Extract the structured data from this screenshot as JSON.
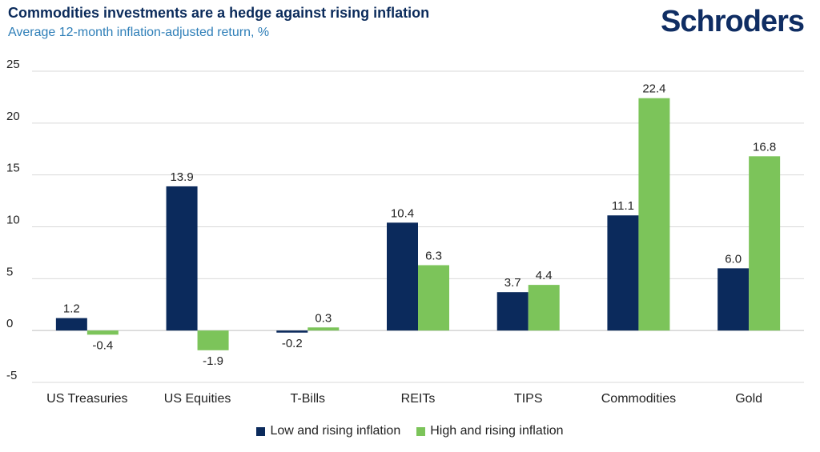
{
  "header": {
    "title": "Commodities investments are a hedge against rising inflation",
    "subtitle": "Average 12-month inflation-adjusted return, %",
    "logo": "Schroders"
  },
  "colors": {
    "low": "#0b2a5c",
    "high": "#7cc45a",
    "grid": "#d9d9d9",
    "axis": "#bfbfbf"
  },
  "chart_data": {
    "type": "bar",
    "title": "Commodities investments are a hedge against rising inflation",
    "subtitle": "Average 12-month inflation-adjusted return, %",
    "xlabel": "",
    "ylabel": "",
    "ylim": [
      -5,
      25
    ],
    "yticks": [
      25,
      20,
      15,
      10,
      5,
      0,
      -5
    ],
    "grid": true,
    "legend_position": "bottom",
    "categories": [
      "US Treasuries",
      "US Equities",
      "T-Bills",
      "REITs",
      "TIPS",
      "Commodities",
      "Gold"
    ],
    "series": [
      {
        "name": "Low and rising inflation",
        "values": [
          1.2,
          13.9,
          -0.2,
          10.4,
          3.7,
          11.1,
          6.0
        ]
      },
      {
        "name": "High and rising inflation",
        "values": [
          -0.4,
          -1.9,
          0.3,
          6.3,
          4.4,
          22.4,
          16.8
        ]
      }
    ]
  }
}
